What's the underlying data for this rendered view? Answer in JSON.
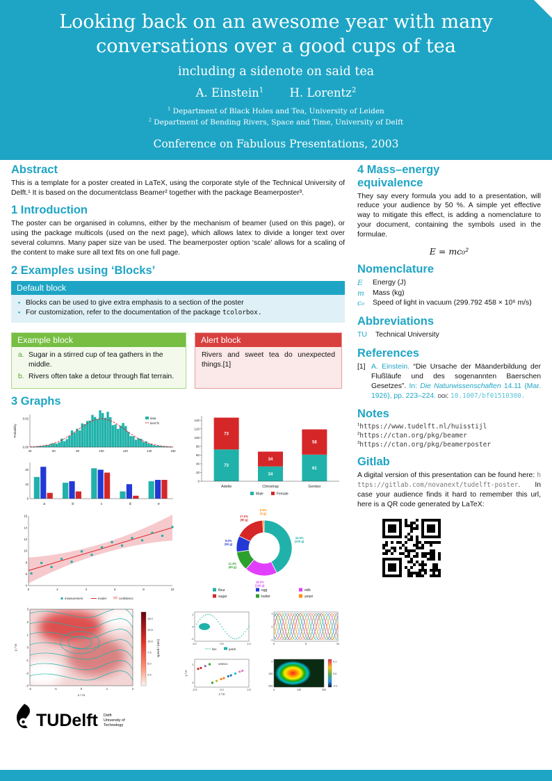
{
  "theme": {
    "accent": "#1EA5C5",
    "block_green": "#77BE43",
    "block_red": "#D8403F",
    "plot_teal": "#20b2aa",
    "plot_red": "#d62728"
  },
  "header": {
    "title_line1": "Looking back on an awesome year with many",
    "title_line2": "conversations over a good cups of tea",
    "subtitle": "including a sidenote on said tea",
    "authors": [
      {
        "name": "A. Einstein",
        "sup": "1"
      },
      {
        "name": "H. Lorentz",
        "sup": "2"
      }
    ],
    "affiliations": [
      {
        "sup": "1",
        "text": "Department of Black Holes and Tea, University of Leiden"
      },
      {
        "sup": "2",
        "text": "Department of Bending Rivers, Space and Time, University of Delft"
      }
    ],
    "conference": "Conference on Fabulous Presentations, 2003"
  },
  "left": {
    "abstract": {
      "heading": "Abstract",
      "text": "This is a template for a poster created in LaTeX, using the corporate style of the Technical University of Delft.¹ It is based on the documentclass Beamer² together with the package Beamerposter³."
    },
    "intro": {
      "heading": "1 Introduction",
      "text": "The poster can be organised in columns, either by the mechanism of beamer (used on this page), or using the package multicols (used on the next page), which allows latex to divide a longer text over several columns. Many paper size van be used. The beamerposter option ‘scale’ allows for a scaling of the content to make sure all text fits on one full page."
    },
    "blocks": {
      "heading": "2 Examples using ‘Blocks’",
      "default": {
        "title": "Default block",
        "item1": "Blocks can be used to give extra emphasis to a section of the poster",
        "item2_text": "For customization, refer to the documentation of the package ",
        "item2_code": "tcolorbox."
      },
      "example": {
        "title": "Example block",
        "items": [
          {
            "label": "a.",
            "text": "Sugar in a stirred cup of tea gathers in the middle."
          },
          {
            "label": "b.",
            "text": "Rivers often take a detour through flat terrain."
          }
        ]
      },
      "alert": {
        "title": "Alert block",
        "text": "Rivers and sweet tea do unexpected things.[1]"
      }
    },
    "graphs_heading": "3 Graphs"
  },
  "right": {
    "mass": {
      "heading": "4 Mass–energy equivalence",
      "text": "They say every formula you add to a presentation, will reduce your audience by 50 %. A simple yet effective way to mitigate this effect, is adding a nomenclature to your document, containing the symbols used in the formulae.",
      "formula": "E = mc₀²"
    },
    "nomenclature": {
      "heading": "Nomenclature",
      "rows": [
        {
          "symbol": "E",
          "desc": "Energy (J)"
        },
        {
          "symbol": "m",
          "desc": "Mass (kg)"
        },
        {
          "symbol": "c₀",
          "desc": "Speed of light in vacuum (299.792 458 × 10⁶ m/s)"
        }
      ]
    },
    "abbreviations": {
      "heading": "Abbreviations",
      "rows": [
        {
          "key": "TU",
          "value": "Technical University"
        }
      ]
    },
    "references": {
      "heading": "References",
      "entries": [
        {
          "num": "[1]",
          "author": "A. Einstein.",
          "title": "“Die Ursache der Mäanderbildung der Flußläufe und des sogenannten Baerschen Gesetzes”.",
          "in_label": "In:",
          "journal": "Die Naturwissenschaften",
          "issue": "14.11 (Mar. 1926), pp. 223–224.",
          "doi_label": "doi:",
          "doi": "10.1007/bf01510300."
        }
      ]
    },
    "notes": {
      "heading": "Notes",
      "items": [
        {
          "sup": "1",
          "url": "https://www.tudelft.nl/huisstijl"
        },
        {
          "sup": "2",
          "url": "https://ctan.org/pkg/beamer"
        },
        {
          "sup": "3",
          "url": "https://ctan.org/pkg/beamerposter"
        }
      ]
    },
    "gitlab": {
      "heading": "Gitlab",
      "before": "A digital version of this presentation can be found here: ",
      "url": "https://gitlab.com/novanext/tudelft-poster",
      "after": ". In case your audience finds it hard to remember this url, here is a QR code generated by LaTeX:"
    }
  },
  "logo": {
    "wordmark": "TUDelft",
    "sub_lines": [
      "Delft",
      "University of",
      "Technology"
    ]
  },
  "chart_data": [
    {
      "id": "histogram",
      "type": "histogram",
      "ylabel": "Probability",
      "x_ticks": [
        40,
        60,
        80,
        100,
        120,
        140,
        160
      ],
      "y_ticks": [
        0,
        0.02
      ],
      "mean": 100,
      "sigma": 20,
      "peak": 0.02,
      "legend": [
        {
          "label": "data",
          "color": "#20b2aa"
        },
        {
          "label": "best fit",
          "color": "#d62728"
        }
      ]
    },
    {
      "id": "grouped_bar",
      "type": "bar",
      "categories": [
        "a",
        "b",
        "c",
        "d",
        "e"
      ],
      "y_ticks": [
        0,
        10,
        20
      ],
      "ylim": [
        0,
        25
      ],
      "series": [
        {
          "color": "#20b2aa",
          "values": [
            15,
            11,
            21,
            5,
            12
          ]
        },
        {
          "color": "#2339d6",
          "values": [
            22,
            12,
            20,
            10,
            13
          ]
        },
        {
          "color": "#d62728",
          "values": [
            4,
            5,
            18,
            2,
            13
          ]
        }
      ]
    },
    {
      "id": "penguins",
      "type": "stacked_bar",
      "categories": [
        "Adelie",
        "Chinstrap",
        "Gentoo"
      ],
      "ylim": [
        0,
        140
      ],
      "y_ticks": [
        0,
        20,
        40,
        60,
        80,
        100,
        120,
        140
      ],
      "series": [
        {
          "name": "Male",
          "color": "#20b2aa",
          "values": [
            73,
            34,
            61
          ]
        },
        {
          "name": "Female",
          "color": "#d62728",
          "values": [
            73,
            34,
            58
          ]
        }
      ]
    },
    {
      "id": "regression",
      "type": "scatter",
      "xlim": [
        0,
        10
      ],
      "ylim": [
        4,
        16
      ],
      "x_ticks": [
        0,
        2,
        4,
        6,
        8,
        10
      ],
      "y_ticks": [
        4,
        6,
        8,
        10,
        12,
        14,
        16
      ],
      "line": {
        "x0": 0,
        "y0": 6.6,
        "x1": 10,
        "y1": 14.0
      },
      "points_x": [
        0.2,
        0.9,
        1.6,
        2.3,
        3.0,
        3.7,
        4.4,
        5.1,
        5.8,
        6.5,
        7.2,
        7.9,
        8.6,
        9.3,
        10.0
      ],
      "points_y": [
        6.1,
        7.9,
        7.2,
        8.6,
        8.1,
        9.9,
        9.3,
        10.6,
        11.5,
        10.9,
        12.2,
        11.8,
        13.1,
        12.6,
        14.1
      ],
      "legend": [
        {
          "label": "measurement",
          "color": "#20b2aa"
        },
        {
          "label": "model",
          "color": "#d62728"
        },
        {
          "label": "confidence",
          "color": "#f5bfc3"
        }
      ]
    },
    {
      "id": "recipe",
      "type": "pie",
      "slices": [
        {
          "label": "flour",
          "grams": 225,
          "pct": 42.5,
          "color": "#20b2aa"
        },
        {
          "label": "milk",
          "grams": 100,
          "pct": 18.9,
          "color": "#e040fb"
        },
        {
          "label": "butter",
          "grams": 60,
          "pct": 11.3,
          "color": "#2ca02c"
        },
        {
          "label": "egg",
          "grams": 50,
          "pct": 9.4,
          "color": "#2339d6"
        },
        {
          "label": "sugar",
          "grams": 90,
          "pct": 17.0,
          "color": "#d62728"
        },
        {
          "label": "yeast",
          "grams": 5,
          "pct": 0.9,
          "color": "#ff8c00"
        }
      ],
      "legend_order": [
        "flour",
        "egg",
        "milk",
        "sugar",
        "butter",
        "yeast"
      ]
    },
    {
      "id": "streamplot",
      "type": "streamplot",
      "xlabel": "x / m",
      "ylabel": "y / m",
      "xlim": [
        -2,
        2
      ],
      "ylim": [
        -3,
        3
      ],
      "x_ticks": [
        -2,
        -1,
        0,
        1,
        2
      ],
      "y_ticks": [
        -3,
        -2,
        -1,
        0,
        1,
        2,
        3
      ],
      "line_color": "#20b2aa",
      "colorbar": {
        "label": "speed / (m/s)",
        "ticks": [
          2.5,
          5.0,
          7.5,
          10.0,
          12.5,
          15.0
        ]
      }
    },
    {
      "id": "panels",
      "type": "multi",
      "palette": [
        "#d62728",
        "#1f77b4",
        "#2ca02c",
        "#e377c2",
        "#ff7f0e",
        "#9467bd",
        "#17becf",
        "#bcbd22"
      ],
      "sine": {
        "color": "#20b2aa",
        "x_ticks": [
          "0.0",
          "0.5",
          "1.0"
        ],
        "y_ticks": [
          -1,
          0,
          1
        ],
        "legend": [
          "line",
          "patch"
        ]
      },
      "multisine": {
        "x_ticks": [
          0,
          5,
          10
        ],
        "y_ticks": [
          -1,
          0,
          1
        ]
      },
      "scatter": {
        "annotation": "\\leftfield",
        "xlabel": "x / m",
        "ylabel": "y / m",
        "x_ticks": [
          "-2.5",
          "0.0",
          "2.5"
        ],
        "y_ticks": [
          0,
          1
        ]
      },
      "heatmap": {
        "x_ticks": [
          0,
          100,
          200
        ],
        "y_ticks": [
          0,
          100,
          200
        ],
        "colorbar_ticks": [
          "0.1",
          "0.0",
          "-0.1"
        ]
      }
    }
  ]
}
